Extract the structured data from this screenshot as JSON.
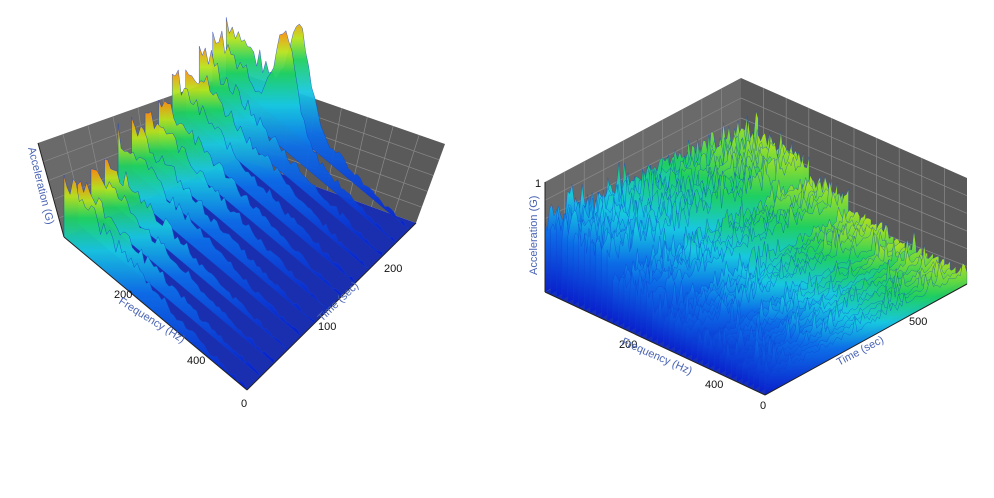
{
  "chart_data": [
    {
      "type": "surface3d",
      "xlabel": "Frequency (Hz)",
      "ylabel": "Time (sec)",
      "zlabel": "Acceleration (G)",
      "x_ticks": [
        "0",
        "200",
        "400"
      ],
      "y_ticks": [
        "100",
        "200"
      ],
      "z_ticks": [],
      "xlim": [
        0,
        500
      ],
      "ylim": [
        0,
        250
      ],
      "zlim": [
        0,
        1
      ],
      "colormap": [
        "#0a1ecc",
        "#0d6ee8",
        "#18c8e0",
        "#20d060",
        "#b8e41c",
        "#ff8a10",
        "#ee1010"
      ],
      "peak": {
        "frequency": 200,
        "time": 230,
        "value": 1.0
      },
      "ridges_time": [
        [
          0,
          0.62
        ],
        [
          20,
          0.45
        ],
        [
          40,
          0.48
        ],
        [
          60,
          0.42
        ],
        [
          80,
          0.5
        ],
        [
          100,
          0.46
        ],
        [
          120,
          0.52
        ],
        [
          140,
          0.5
        ],
        [
          160,
          0.55
        ],
        [
          180,
          0.6
        ],
        [
          200,
          0.58
        ],
        [
          220,
          0.66
        ],
        [
          240,
          0.6
        ]
      ],
      "grid": true
    },
    {
      "type": "surface3d",
      "xlabel": "Frequency (Hz)",
      "ylabel": "Time (sec)",
      "zlabel": "Acceleration (G)",
      "x_ticks": [
        "0",
        "200",
        "400"
      ],
      "y_ticks": [
        "500"
      ],
      "z_ticks": [
        "1"
      ],
      "xlim": [
        0,
        500
      ],
      "ylim": [
        0,
        750
      ],
      "zlim": [
        0,
        1
      ],
      "colormap": [
        "#0a1ecc",
        "#0d6ee8",
        "#18c8e0",
        "#20d060",
        "#b8e41c",
        "#ff8a10",
        "#ee1010"
      ],
      "bands_frequency": [
        {
          "from": 0,
          "to": 60,
          "level": 0.75
        },
        {
          "from": 60,
          "to": 150,
          "level": 0.72
        },
        {
          "from": 150,
          "to": 240,
          "level": 0.48
        },
        {
          "from": 240,
          "to": 330,
          "level": 0.28
        },
        {
          "from": 330,
          "to": 500,
          "level": 0.18
        }
      ],
      "grid": true
    }
  ]
}
